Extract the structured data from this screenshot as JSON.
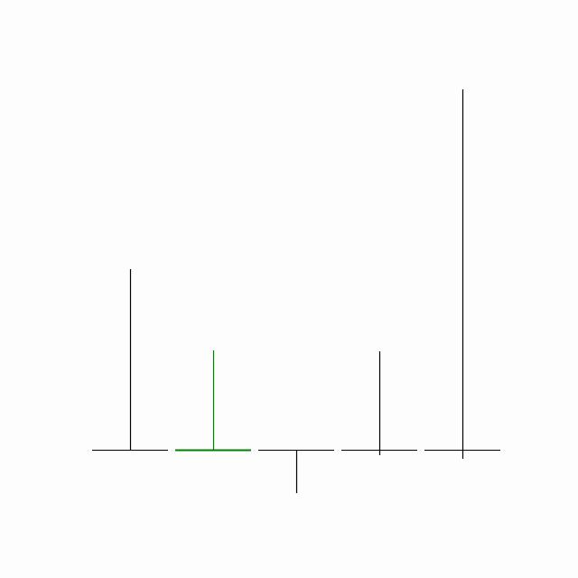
{
  "chart_data": {
    "type": "bar",
    "style": "stem-with-baseline-segment",
    "categories": [
      "",
      "",
      "",
      "",
      ""
    ],
    "series": [
      {
        "values_top": [
          200,
          110,
          0,
          109,
          399
        ],
        "values_bottom": [
          0,
          0,
          -48,
          -6,
          -10
        ],
        "colors": [
          "#000000",
          "#008000",
          "#000000",
          "#000000",
          "#000000"
        ]
      }
    ],
    "title": "",
    "xlabel": "",
    "ylabel": "",
    "ylim": [
      -60,
      420
    ],
    "grid": false,
    "axes_visible": false,
    "legend": "none"
  }
}
